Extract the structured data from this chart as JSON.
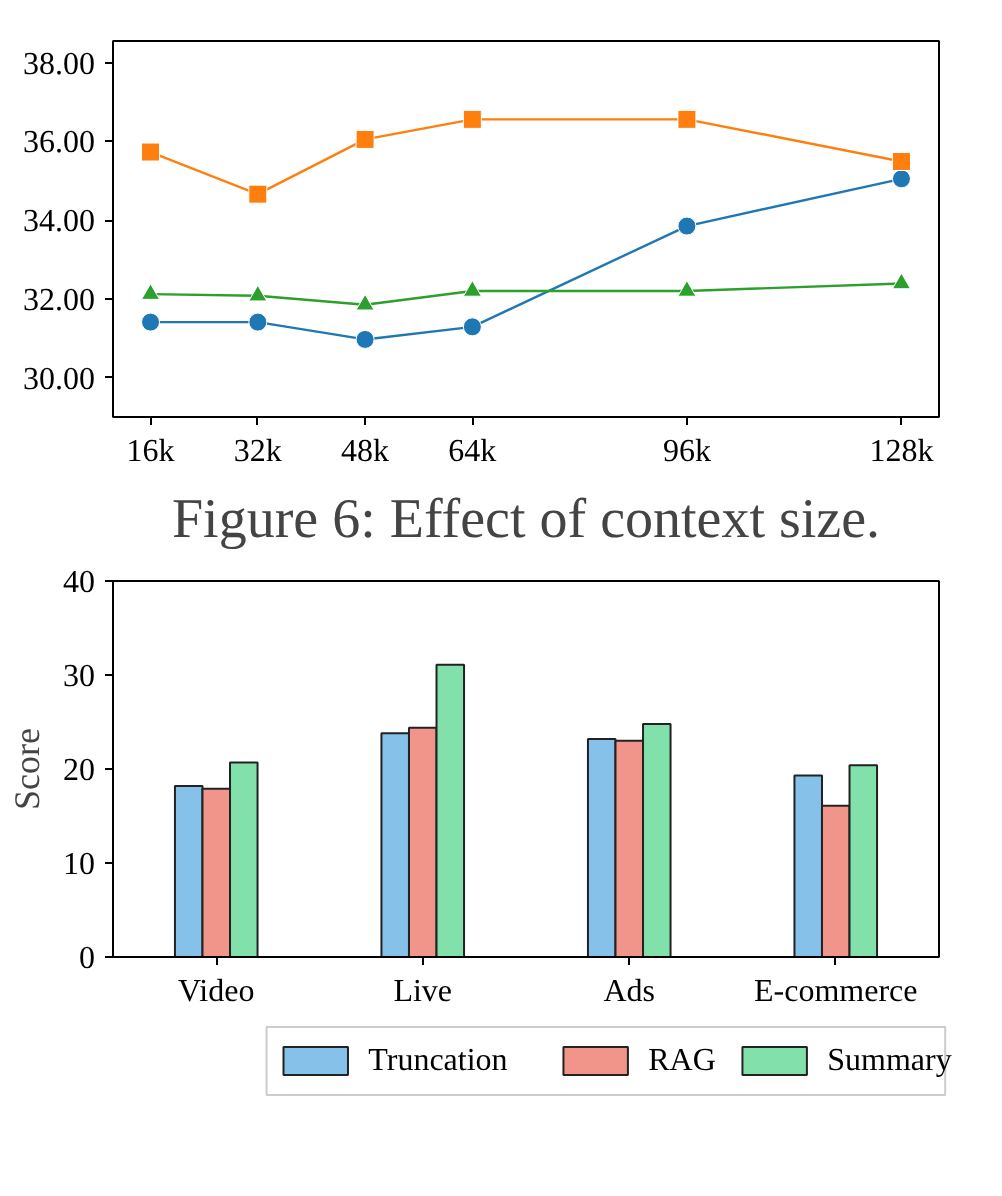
{
  "chart_data": [
    {
      "type": "line",
      "x": [
        16,
        32,
        48,
        64,
        96,
        128
      ],
      "xlim": [
        10.4,
        133.6
      ],
      "xticks": [
        {
          "value": 16,
          "label": "16k"
        },
        {
          "value": 32,
          "label": "32k"
        },
        {
          "value": 48,
          "label": "48k"
        },
        {
          "value": 64,
          "label": "64k"
        },
        {
          "value": 96,
          "label": "96k"
        },
        {
          "value": 128,
          "label": "128k"
        }
      ],
      "ylim": [
        29,
        38.55
      ],
      "yticks": [
        {
          "value": 30,
          "label": "30.00"
        },
        {
          "value": 32,
          "label": "32.00"
        },
        {
          "value": 34,
          "label": "34.00"
        },
        {
          "value": 36,
          "label": "36.00"
        },
        {
          "value": 38,
          "label": "38.00"
        }
      ],
      "series": [
        {
          "color": "#1f77b4",
          "marker": "circle",
          "values": [
            31.41,
            31.41,
            30.97,
            31.29,
            33.85,
            35.05
          ]
        },
        {
          "color": "#ff7f0e",
          "marker": "square",
          "values": [
            35.73,
            34.66,
            36.05,
            36.56,
            36.56,
            35.49
          ]
        },
        {
          "color": "#2ca02c",
          "marker": "triangle",
          "values": [
            32.12,
            32.08,
            31.85,
            32.2,
            32.2,
            32.39
          ]
        }
      ],
      "line_style": "solid",
      "grid": false,
      "legend": false,
      "annotations": [
        "Figure 6: Effect of context size."
      ]
    },
    {
      "type": "bar",
      "categories": [
        "Video",
        "Live",
        "Ads",
        "E-commerce"
      ],
      "ylabel": "Score",
      "ylim": [
        0,
        40
      ],
      "yticks": [
        0,
        10,
        20,
        30,
        40
      ],
      "series": [
        {
          "name": "Truncation",
          "color": "#85c1e9",
          "values": [
            18.2,
            23.8,
            23.2,
            19.3
          ]
        },
        {
          "name": "RAG",
          "color": "#f1948a",
          "values": [
            17.9,
            24.4,
            23.0,
            16.1
          ]
        },
        {
          "name": "Summary",
          "color": "#82e0aa",
          "values": [
            20.7,
            31.1,
            24.8,
            20.4
          ]
        }
      ],
      "grid": false,
      "legend": "bottom"
    }
  ]
}
